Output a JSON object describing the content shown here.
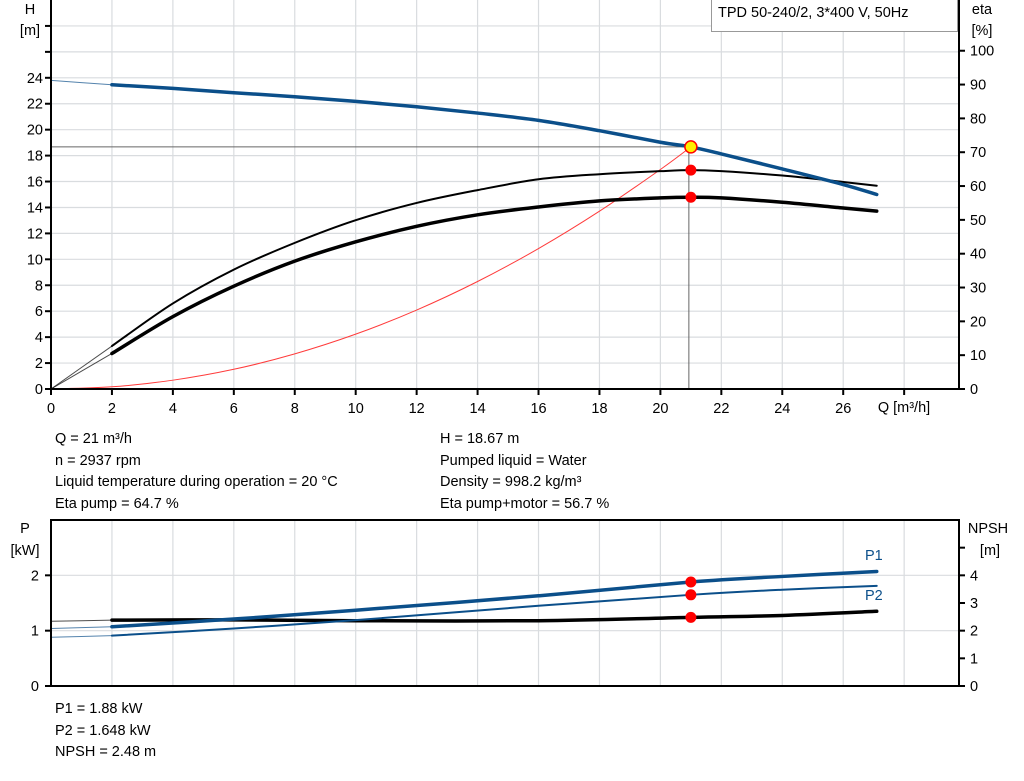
{
  "title_box": "TPD 50-240/2, 3*400 V, 50Hz",
  "colors": {
    "head": "#0b4f8a",
    "power": "#0b4f8a",
    "eff": "#000000",
    "npsh": "#000000",
    "system": "#ff3b3b",
    "duty_dot": "#ff0000",
    "duty_point": "#ffee00",
    "grid": "#d9dcdf"
  },
  "info_left": [
    "Q = 21 m³/h",
    "n = 2937 rpm",
    "Liquid temperature during operation = 20 °C",
    "Eta pump = 64.7 %"
  ],
  "info_right": [
    "H = 18.67 m",
    "Pumped liquid = Water",
    "Density = 998.2 kg/m³",
    "Eta pump+motor = 56.7 %"
  ],
  "info_bottom": [
    "P1 = 1.88 kW",
    "P2 = 1.648 kW",
    "NPSH = 2.48 m"
  ],
  "chart_data": [
    {
      "type": "line",
      "xlabel": "Q [m³/h]",
      "ylabel": "H\n[m]",
      "y2label": "eta\n[%]",
      "y_label_lines": [
        "H",
        "[m]"
      ],
      "y2_label_lines": [
        "eta",
        "[%]"
      ],
      "xlim": [
        0,
        29.8
      ],
      "ylim": [
        0,
        30
      ],
      "y2lim": [
        0,
        115
      ],
      "x_ticks": [
        0,
        2,
        4,
        6,
        8,
        10,
        12,
        14,
        16,
        18,
        20,
        22,
        24,
        26
      ],
      "y_ticks": [
        0,
        2,
        4,
        6,
        8,
        10,
        12,
        14,
        16,
        18,
        20,
        22,
        24
      ],
      "y_unlabeled_ticks": [
        26,
        28
      ],
      "y2_ticks": [
        0,
        10,
        20,
        30,
        40,
        50,
        60,
        70,
        80,
        90,
        100
      ],
      "grid": true,
      "thin_until_x": 2,
      "series": [
        {
          "key": "head",
          "axis": "y",
          "x": [
            0,
            2,
            4,
            6,
            8,
            10,
            12,
            14,
            16,
            18,
            20,
            21,
            22,
            24,
            26,
            27.1
          ],
          "y": [
            23.8,
            23.46,
            23.18,
            22.85,
            22.54,
            22.18,
            21.77,
            21.28,
            20.72,
            19.92,
            19.03,
            18.67,
            18.13,
            16.97,
            15.77,
            15.0
          ]
        },
        {
          "key": "eta_pump",
          "axis": "y2",
          "x": [
            0,
            2,
            4,
            6,
            8,
            10,
            12,
            14,
            16,
            18,
            20,
            21,
            22,
            24,
            26,
            27.1
          ],
          "y": [
            0,
            12.7,
            25.3,
            35.3,
            43.2,
            49.9,
            55.0,
            58.8,
            62.0,
            63.5,
            64.4,
            64.7,
            64.4,
            63.1,
            61.2,
            60.1
          ]
        },
        {
          "key": "eta_pump_motor",
          "axis": "y2",
          "x": [
            0,
            2,
            4,
            6,
            8,
            10,
            12,
            14,
            16,
            18,
            20,
            21,
            22,
            24,
            26,
            27.1
          ],
          "y": [
            0,
            10.5,
            21.4,
            30.4,
            37.8,
            43.5,
            48.1,
            51.5,
            53.8,
            55.6,
            56.5,
            56.7,
            56.5,
            55.2,
            53.5,
            52.6
          ]
        },
        {
          "key": "system",
          "axis": "y",
          "x": [
            0,
            2,
            4,
            6,
            8,
            10,
            12,
            14,
            16,
            18,
            20,
            21
          ],
          "y": [
            0,
            0.17,
            0.68,
            1.52,
            2.71,
            4.23,
            6.09,
            8.29,
            10.83,
            13.71,
            16.93,
            18.67
          ]
        }
      ],
      "duty_point": {
        "q": 21,
        "h": 18.67,
        "eta_pump": 64.7,
        "eta_pump_motor": 56.7
      }
    },
    {
      "type": "line",
      "ylabel": "P\n[kW]",
      "y2label": "NPSH\n[m]",
      "y_label_lines": [
        "P",
        "[kW]"
      ],
      "y2_label_lines": [
        "NPSH",
        "[m]"
      ],
      "xlim": [
        0,
        29.8
      ],
      "ylim": [
        0,
        3
      ],
      "y2lim": [
        0,
        6
      ],
      "y_ticks": [
        0,
        1,
        2
      ],
      "y2_ticks": [
        0,
        1,
        2,
        3,
        4
      ],
      "y2_unlabeled_ticks": [
        5
      ],
      "grid": true,
      "thin_until_x": 2,
      "series": [
        {
          "key": "p1",
          "name": "P1",
          "axis": "y",
          "x": [
            0,
            2,
            6,
            10,
            16,
            21,
            24,
            27.1
          ],
          "y": [
            1.04,
            1.07,
            1.21,
            1.37,
            1.63,
            1.88,
            1.98,
            2.07
          ]
        },
        {
          "key": "p2",
          "name": "P2",
          "axis": "y",
          "x": [
            0,
            2,
            6,
            10,
            16,
            21,
            24,
            27.1
          ],
          "y": [
            0.88,
            0.91,
            1.04,
            1.19,
            1.45,
            1.648,
            1.74,
            1.81
          ]
        },
        {
          "key": "npsh",
          "axis": "y2",
          "x": [
            0,
            2,
            6,
            10,
            16,
            21,
            24,
            27.1
          ],
          "y": [
            2.34,
            2.38,
            2.39,
            2.36,
            2.36,
            2.48,
            2.55,
            2.7
          ]
        }
      ],
      "duty_point": {
        "q": 21,
        "p1": 1.88,
        "p2": 1.648,
        "npsh": 2.48
      }
    }
  ]
}
